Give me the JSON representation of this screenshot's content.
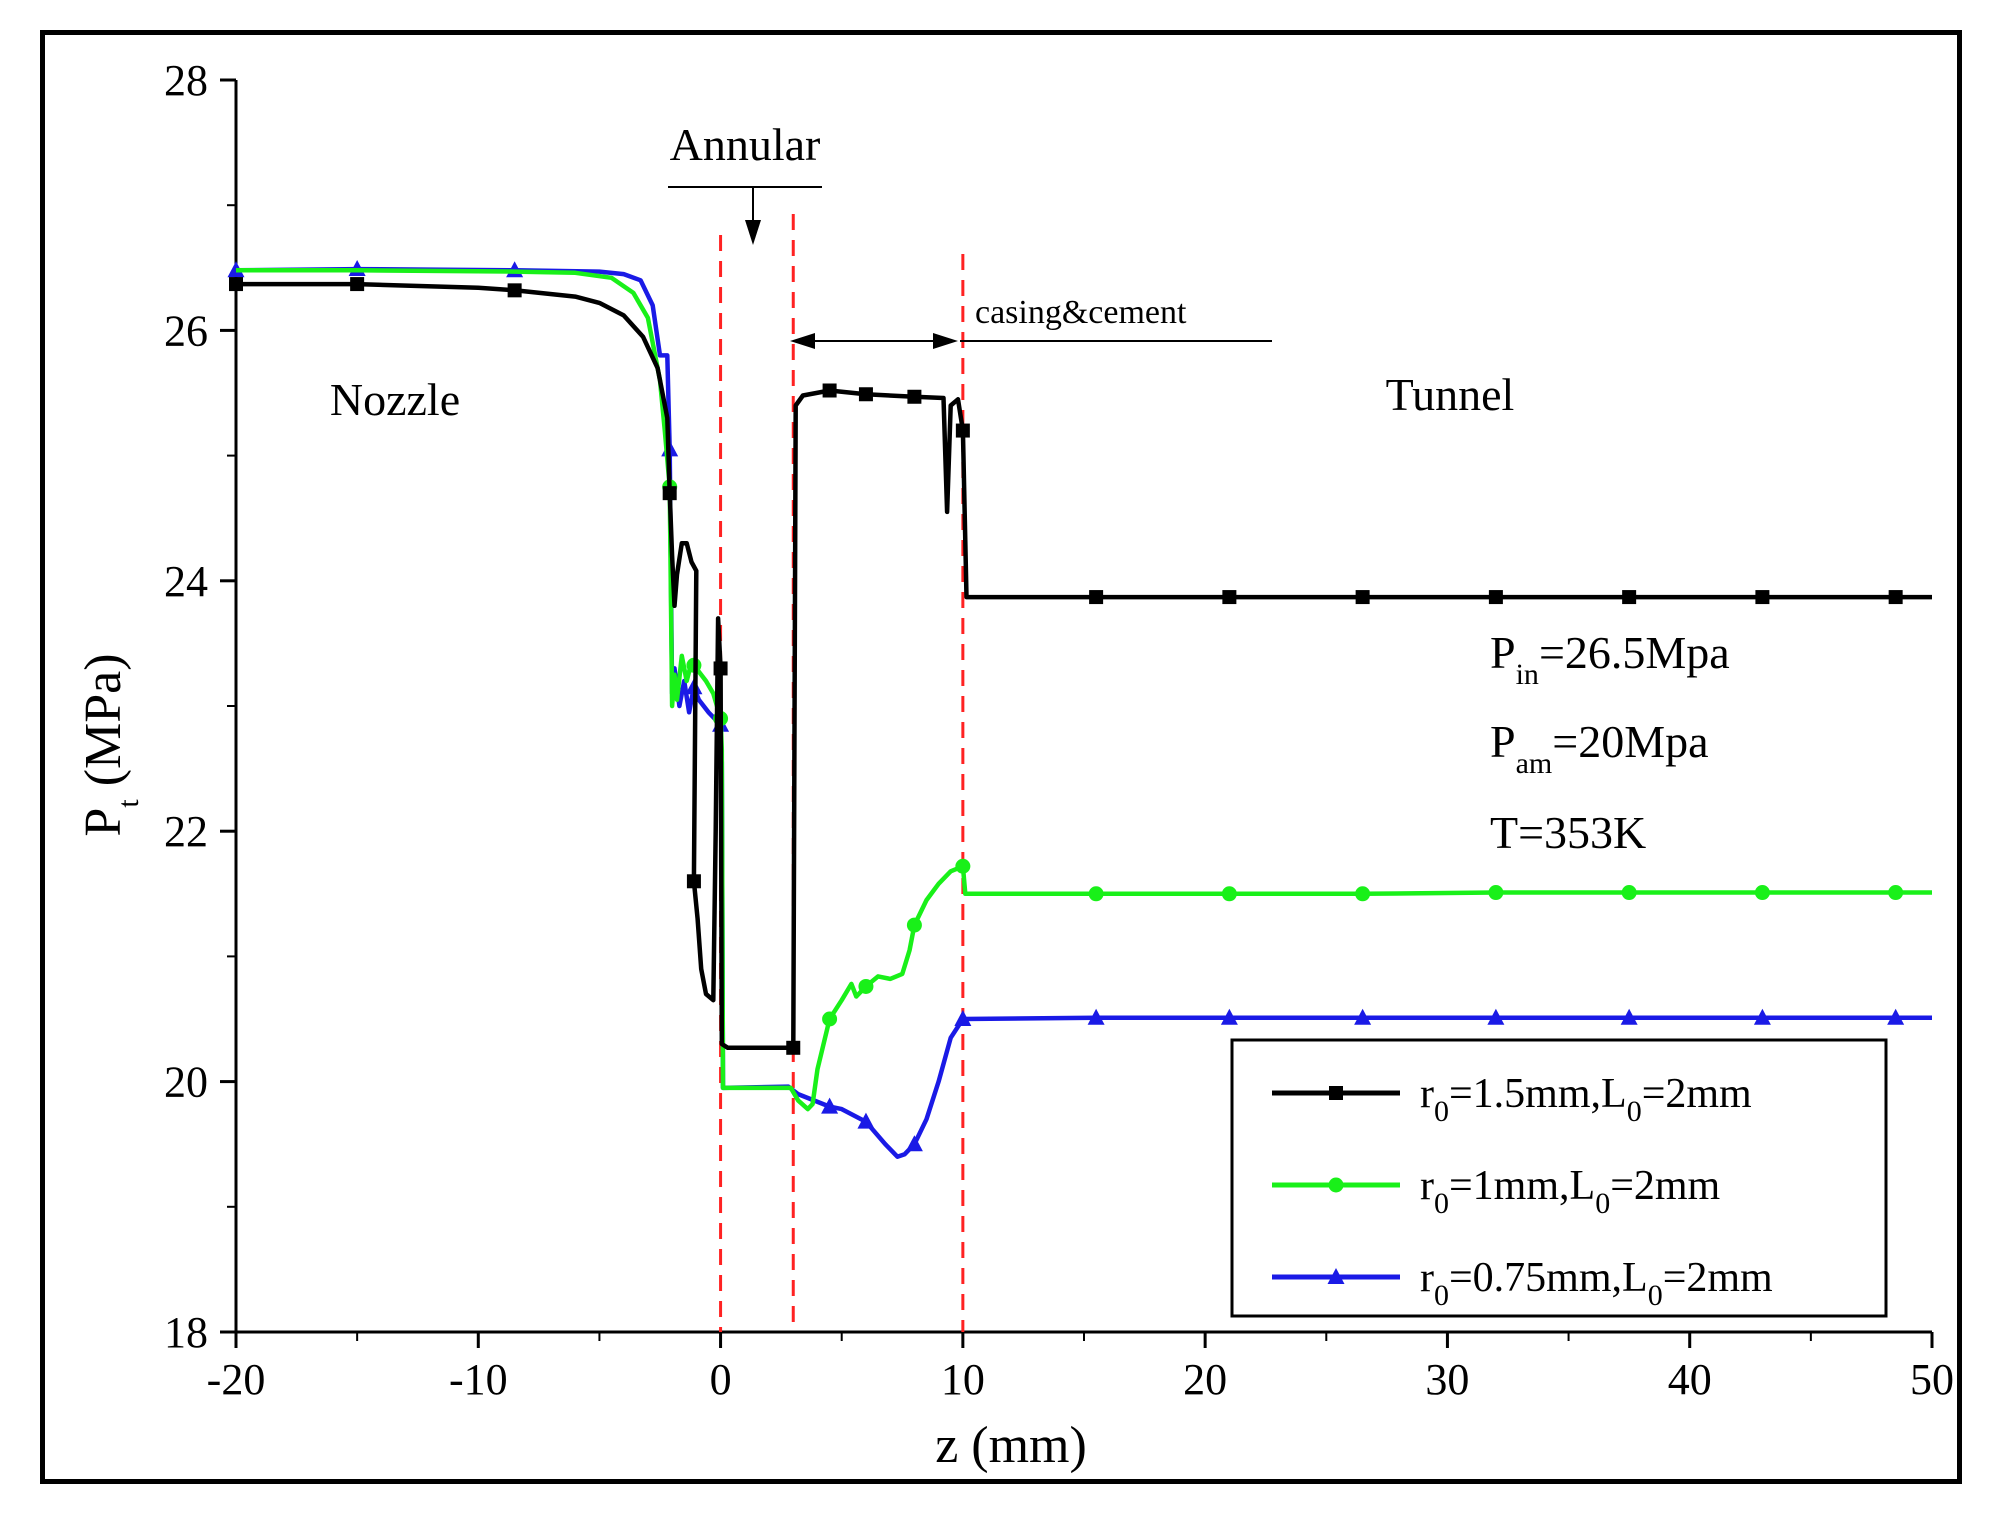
{
  "chart_data": {
    "type": "line",
    "xlabel": "z (mm)",
    "ylabel_main": "P",
    "ylabel_sub": "t",
    "ylabel_unit": " (MPa)",
    "xlim": [
      -20,
      50
    ],
    "ylim": [
      18,
      28
    ],
    "x_ticks": [
      -20,
      -10,
      0,
      10,
      20,
      30,
      40,
      50
    ],
    "y_ticks": [
      18,
      20,
      22,
      24,
      26,
      28
    ],
    "x_minor_step": 5,
    "y_minor_step": 1,
    "annotations": {
      "nozzle": "Nozzle",
      "tunnel": "Tunnel",
      "annular": "Annular",
      "casing": "casing&cement",
      "p_in_main": "P",
      "p_in_sub": "in",
      "p_in_rest": "=26.5Mpa",
      "p_am_main": "P",
      "p_am_sub": "am",
      "p_am_rest": "=20Mpa",
      "temperature": "T=353K"
    },
    "region_boundaries_x": [
      0,
      3,
      10
    ],
    "legend_position": "bottom-right",
    "series": [
      {
        "name_main": "r",
        "name_sub1": "0",
        "name_mid": "=1.5mm,L",
        "name_sub2": "0",
        "name_end": "=2mm",
        "color": "#000000",
        "marker": "square",
        "points": [
          [
            -20,
            26.37
          ],
          [
            -15,
            26.37
          ],
          [
            -10,
            26.34
          ],
          [
            -8.5,
            26.32
          ],
          [
            -6,
            26.27
          ],
          [
            -5,
            26.22
          ],
          [
            -4,
            26.12
          ],
          [
            -3.2,
            25.95
          ],
          [
            -2.6,
            25.7
          ],
          [
            -2.2,
            25.3
          ],
          [
            -2.1,
            24.7
          ],
          [
            -2.0,
            24.2
          ],
          [
            -1.9,
            23.8
          ],
          [
            -1.8,
            24.05
          ],
          [
            -1.6,
            24.3
          ],
          [
            -1.4,
            24.3
          ],
          [
            -1.2,
            24.15
          ],
          [
            -1.0,
            24.08
          ],
          [
            -1.1,
            21.6
          ],
          [
            -0.95,
            21.3
          ],
          [
            -0.8,
            20.9
          ],
          [
            -0.6,
            20.7
          ],
          [
            -0.3,
            20.65
          ],
          [
            -0.2,
            22.0
          ],
          [
            -0.1,
            23.7
          ],
          [
            0,
            23.3
          ],
          [
            0.05,
            20.3
          ],
          [
            0.3,
            20.27
          ],
          [
            3.0,
            20.27
          ],
          [
            3.1,
            25.4
          ],
          [
            3.4,
            25.48
          ],
          [
            4.5,
            25.52
          ],
          [
            6,
            25.49
          ],
          [
            8,
            25.47
          ],
          [
            9.2,
            25.46
          ],
          [
            9.35,
            24.55
          ],
          [
            9.5,
            25.4
          ],
          [
            9.8,
            25.45
          ],
          [
            10.0,
            25.2
          ],
          [
            10.15,
            23.87
          ],
          [
            12,
            23.87
          ],
          [
            15.5,
            23.87
          ],
          [
            21,
            23.87
          ],
          [
            26.5,
            23.87
          ],
          [
            32,
            23.87
          ],
          [
            37.5,
            23.87
          ],
          [
            43,
            23.87
          ],
          [
            48.5,
            23.87
          ],
          [
            50,
            23.87
          ]
        ],
        "markers_x": [
          -20,
          -15,
          -8.5,
          -2.1,
          -1.1,
          0,
          3,
          4.5,
          6,
          8,
          10,
          15.5,
          21,
          26.5,
          32,
          37.5,
          43,
          48.5
        ]
      },
      {
        "name_main": "r",
        "name_sub1": "0",
        "name_mid": "=1mm,L",
        "name_sub2": "0",
        "name_end": "=2mm",
        "color": "#19f019",
        "marker": "circle",
        "points": [
          [
            -20,
            26.48
          ],
          [
            -15,
            26.48
          ],
          [
            -8.5,
            26.47
          ],
          [
            -6,
            26.46
          ],
          [
            -4.5,
            26.42
          ],
          [
            -3.6,
            26.3
          ],
          [
            -3,
            26.1
          ],
          [
            -2.5,
            25.6
          ],
          [
            -2.3,
            25.2
          ],
          [
            -2.1,
            24.75
          ],
          [
            -2.0,
            23.0
          ],
          [
            -1.9,
            23.25
          ],
          [
            -1.8,
            23.05
          ],
          [
            -1.6,
            23.4
          ],
          [
            -1.4,
            23.2
          ],
          [
            -1.2,
            23.35
          ],
          [
            -1.0,
            23.3
          ],
          [
            -0.6,
            23.2
          ],
          [
            -0.3,
            23.1
          ],
          [
            0,
            22.9
          ],
          [
            0.05,
            22.65
          ],
          [
            0.1,
            19.95
          ],
          [
            2.9,
            19.95
          ],
          [
            3.2,
            19.85
          ],
          [
            3.6,
            19.78
          ],
          [
            3.8,
            19.82
          ],
          [
            4.0,
            20.1
          ],
          [
            4.5,
            20.5
          ],
          [
            5.0,
            20.65
          ],
          [
            5.4,
            20.78
          ],
          [
            5.6,
            20.68
          ],
          [
            6.0,
            20.76
          ],
          [
            6.5,
            20.84
          ],
          [
            7.0,
            20.82
          ],
          [
            7.5,
            20.86
          ],
          [
            7.8,
            21.05
          ],
          [
            8.0,
            21.25
          ],
          [
            8.5,
            21.45
          ],
          [
            9.0,
            21.58
          ],
          [
            9.5,
            21.68
          ],
          [
            10.0,
            21.72
          ],
          [
            10.1,
            21.5
          ],
          [
            15.5,
            21.5
          ],
          [
            21,
            21.5
          ],
          [
            26.5,
            21.5
          ],
          [
            32,
            21.51
          ],
          [
            37.5,
            21.51
          ],
          [
            43,
            21.51
          ],
          [
            48.5,
            21.51
          ],
          [
            50,
            21.51
          ]
        ],
        "markers_x": [
          -2.1,
          -1.1,
          0,
          4.5,
          6,
          8,
          10,
          15.5,
          21,
          26.5,
          32,
          37.5,
          43,
          48.5
        ]
      },
      {
        "name_main": "r",
        "name_sub1": "0",
        "name_mid": "=0.75mm,L",
        "name_sub2": "0",
        "name_end": "=2mm",
        "color": "#1a1ae6",
        "marker": "triangle",
        "points": [
          [
            -20,
            26.48
          ],
          [
            -15,
            26.49
          ],
          [
            -8.5,
            26.48
          ],
          [
            -5,
            26.47
          ],
          [
            -4,
            26.45
          ],
          [
            -3.3,
            26.4
          ],
          [
            -2.8,
            26.2
          ],
          [
            -2.5,
            25.8
          ],
          [
            -2.2,
            25.8
          ],
          [
            -2.1,
            25.05
          ],
          [
            -2.0,
            23.1
          ],
          [
            -1.9,
            23.3
          ],
          [
            -1.7,
            23.0
          ],
          [
            -1.5,
            23.2
          ],
          [
            -1.3,
            22.95
          ],
          [
            -1.1,
            23.15
          ],
          [
            -0.9,
            23.05
          ],
          [
            -0.5,
            22.95
          ],
          [
            0,
            22.85
          ],
          [
            0.05,
            22.55
          ],
          [
            0.1,
            19.95
          ],
          [
            2.8,
            19.96
          ],
          [
            3.2,
            19.9
          ],
          [
            4.5,
            19.8
          ],
          [
            5,
            19.78
          ],
          [
            6,
            19.68
          ],
          [
            6.8,
            19.5
          ],
          [
            7.3,
            19.4
          ],
          [
            7.6,
            19.42
          ],
          [
            8,
            19.5
          ],
          [
            8.5,
            19.7
          ],
          [
            9,
            20.0
          ],
          [
            9.5,
            20.35
          ],
          [
            10,
            20.5
          ],
          [
            15.5,
            20.51
          ],
          [
            21,
            20.51
          ],
          [
            26.5,
            20.51
          ],
          [
            32,
            20.51
          ],
          [
            37.5,
            20.51
          ],
          [
            43,
            20.51
          ],
          [
            48.5,
            20.51
          ],
          [
            50,
            20.51
          ]
        ],
        "markers_x": [
          -20,
          -15,
          -8.5,
          -2.1,
          -1.1,
          0,
          4.5,
          6,
          8,
          10,
          15.5,
          21,
          26.5,
          32,
          37.5,
          43,
          48.5
        ]
      }
    ]
  }
}
